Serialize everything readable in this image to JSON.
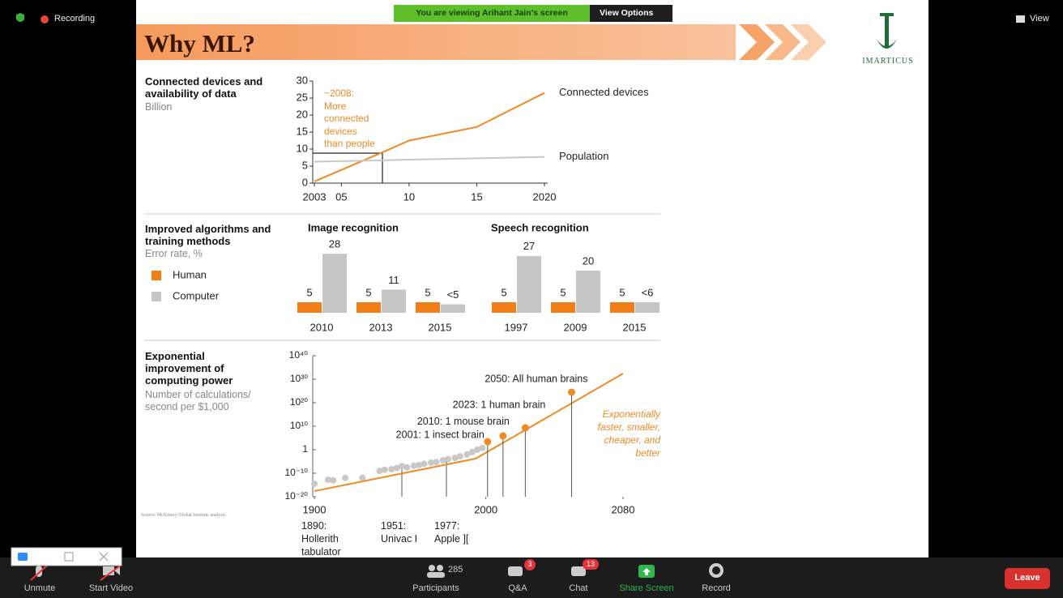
{
  "zoom": {
    "recording": "Recording",
    "banner": "You are viewing Arihant Jain's screen",
    "view_options": "View Options",
    "view": "View",
    "toolbar": {
      "unmute": "Unmute",
      "start_video": "Start Video",
      "participants_count": 285,
      "participants": "Participants",
      "qa_badge": 3,
      "qa": "Q&A",
      "chat_badge": 13,
      "chat": "Chat",
      "share_screen": "Share Screen",
      "record": "Record",
      "leave": "Leave"
    }
  },
  "slide": {
    "title": "Why ML?",
    "logo": "IMARTICUS",
    "source": "Source: McKinsey Global Institute analysis",
    "sections": [
      {
        "heading": "Connected devices and availability of data",
        "subheading": "Billion"
      },
      {
        "heading": "Improved algorithms and training methods",
        "subheading": "Error rate, %"
      },
      {
        "heading": "Exponential improvement of computing power",
        "subheading": "Number of calculations/ second per $1,000"
      }
    ]
  },
  "charts": [
    {
      "type": "line",
      "x": [
        2003,
        2008,
        2010,
        2015,
        2020
      ],
      "series": [
        {
          "name": "Connected devices",
          "color": "#f08a24",
          "values": [
            0.5,
            9,
            12.5,
            16.5,
            26.5
          ]
        },
        {
          "name": "Population",
          "color": "#c8c8c8",
          "values": [
            6.3,
            6.7,
            6.9,
            7.3,
            7.7
          ]
        }
      ],
      "xlim": [
        2003,
        2020
      ],
      "xticks": [
        2003,
        {
          "value": 2005,
          "label": "05"
        },
        {
          "value": 2010,
          "label": "10"
        },
        {
          "value": 2015,
          "label": "15"
        },
        2020
      ],
      "ylim": [
        0,
        30
      ],
      "yticks": [
        0,
        5,
        10,
        15,
        20,
        25,
        30
      ],
      "annotation": [
        "~2008:",
        "More",
        "connected",
        "devices",
        "than people"
      ]
    },
    {
      "type": "bar",
      "series": [
        {
          "name": "Human",
          "color": "#f07f1a"
        },
        {
          "name": "Computer",
          "color": "#c6c6c6"
        }
      ],
      "panels": [
        {
          "title": "Image recognition",
          "categories": [
            "2010",
            "2013",
            "2015"
          ],
          "series": [
            {
              "values": [
                5,
                5,
                5
              ]
            },
            {
              "values": [
                28,
                11,
                4
              ],
              "value_labels": [
                "28",
                "11",
                "<5"
              ]
            }
          ]
        },
        {
          "title": "Speech recognition",
          "categories": [
            "1997",
            "2009",
            "2015"
          ],
          "series": [
            {
              "values": [
                5,
                5,
                5
              ]
            },
            {
              "values": [
                27,
                20,
                5
              ],
              "value_labels": [
                "27",
                "20",
                "<6"
              ]
            }
          ]
        }
      ]
    },
    {
      "type": "scatter",
      "log_y": true,
      "xlim": [
        1900,
        2080
      ],
      "xticks": [
        1900,
        2000,
        2080
      ],
      "ylim": [
        1e-20,
        1e+40
      ],
      "yticks": [
        {
          "value": 1e+40,
          "label": "10⁴⁰"
        },
        {
          "value": 1e+30,
          "label": "10³⁰"
        },
        {
          "value": 1e+20,
          "label": "10²⁰"
        },
        {
          "value": 10000000000.0,
          "label": "10¹⁰"
        },
        1,
        {
          "value": 1e-10,
          "label": "10⁻¹⁰"
        },
        {
          "value": 1e-20,
          "label": "10⁻²⁰"
        }
      ],
      "series": [
        {
          "mode": "markers",
          "color": "#c8c8c8",
          "x": [
            1900,
            1908,
            1911,
            1918,
            1928,
            1938,
            1941,
            1945,
            1948,
            1951,
            1954,
            1958,
            1961,
            1964,
            1968,
            1971,
            1975,
            1978,
            1982,
            1985,
            1989,
            1992,
            1995,
            1998
          ],
          "values": [
            3e-15,
            1.6e-13,
            1e-13,
            1e-12,
            1e-12,
            1e-09,
            3e-09,
            5e-09,
            1.6e-08,
            1e-07,
            3e-08,
            1.6e-07,
            3e-07,
            1e-06,
            3e-06,
            6e-06,
            3e-05,
            0.0001,
            0.0003,
            0.0016,
            0.01,
            0.1,
            1,
            6
          ]
        },
        {
          "mode": "lines",
          "color": "#f08a24",
          "x": [
            1900,
            1994,
            2080
          ],
          "values": [
            2.5e-18,
            0.00016,
            2.5e+32
          ]
        }
      ],
      "milestones": [
        {
          "label": "2001: 1 insect brain",
          "x": 2001,
          "value": 2500
        },
        {
          "label": "2010: 1 mouse brain",
          "x": 2010,
          "value": 800000
        },
        {
          "label": "2023: 1 human brain",
          "x": 2023,
          "value": 2000000000
        },
        {
          "label": "2050: All human brains",
          "x": 2050,
          "value": 3e+24
        }
      ],
      "milestone_color": "#f08a24",
      "annotation": "Exponentially faster, smaller, cheaper, and better",
      "notes": [
        [
          "1890:",
          "Hollerith",
          "tabulator"
        ],
        [
          "1951:",
          "Univac I"
        ],
        [
          "1977:",
          "Apple ]["
        ]
      ]
    }
  ]
}
